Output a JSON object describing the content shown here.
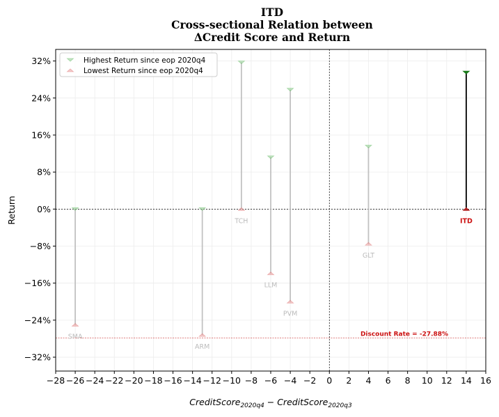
{
  "chart_data": {
    "type": "scatter",
    "title_lines": [
      "ITD",
      "Cross-sectional Relation between",
      "ΔCredit Score and Return"
    ],
    "xlabel": {
      "main": "CreditScore",
      "sub1": "2020q4",
      "minus": " − ",
      "main2": "CreditScore",
      "sub2": "2020q3"
    },
    "ylabel": "Return",
    "xlim": [
      -28,
      16
    ],
    "ylim": [
      -0.35,
      0.345
    ],
    "x_ticks": [
      -28,
      -26,
      -24,
      -22,
      -20,
      -18,
      -16,
      -14,
      -12,
      -10,
      -8,
      -6,
      -4,
      -2,
      0,
      2,
      4,
      6,
      8,
      10,
      12,
      14,
      16
    ],
    "x_tick_labels": [
      "−28",
      "−26",
      "−24",
      "−22",
      "−20",
      "−18",
      "−16",
      "−14",
      "−12",
      "−10",
      "−8",
      "−6",
      "−4",
      "−2",
      "0",
      "2",
      "4",
      "6",
      "8",
      "10",
      "12",
      "14",
      "16"
    ],
    "y_ticks": [
      0.32,
      0.24,
      0.16,
      0.08,
      0,
      -0.08,
      -0.16,
      -0.24,
      -0.32
    ],
    "y_tick_labels": [
      "32%",
      "24%",
      "16%",
      "8%",
      "0%",
      "−8%",
      "−16%",
      "−24%",
      "−32%"
    ],
    "grid": true,
    "legend_position": "top-left",
    "series": [
      {
        "name": "Highest Return since eop 2020q4",
        "marker": "triangle-down",
        "color": "#7cc47c"
      },
      {
        "name": "Lowest Return since eop 2020q4",
        "marker": "triangle-up",
        "color": "#e58a8a"
      }
    ],
    "points": [
      {
        "label": "SMA",
        "x": -26,
        "high": 0.0,
        "low": -0.25,
        "focus": false
      },
      {
        "label": "ARM",
        "x": -13,
        "high": 0.0,
        "low": -0.272,
        "focus": false
      },
      {
        "label": "TCH",
        "x": -9,
        "high": 0.317,
        "low": 0.0,
        "focus": false
      },
      {
        "label": "LLM",
        "x": -6,
        "high": 0.112,
        "low": -0.139,
        "focus": false
      },
      {
        "label": "PVM",
        "x": -4,
        "high": 0.258,
        "low": -0.2,
        "focus": false
      },
      {
        "label": "GLT",
        "x": 4,
        "high": 0.135,
        "low": -0.075,
        "focus": false
      },
      {
        "label": "ITD",
        "x": 14,
        "high": 0.295,
        "low": 0.0,
        "focus": true
      }
    ],
    "discount_rate": {
      "value": -0.2788,
      "label": "Discount Rate = -27.88%"
    },
    "colors": {
      "focus_line": "#000000",
      "focus_high": "#1a7a1a",
      "focus_low": "#b02020",
      "other_line": "#bbbbbb",
      "discount_line": "#cc3333"
    }
  }
}
